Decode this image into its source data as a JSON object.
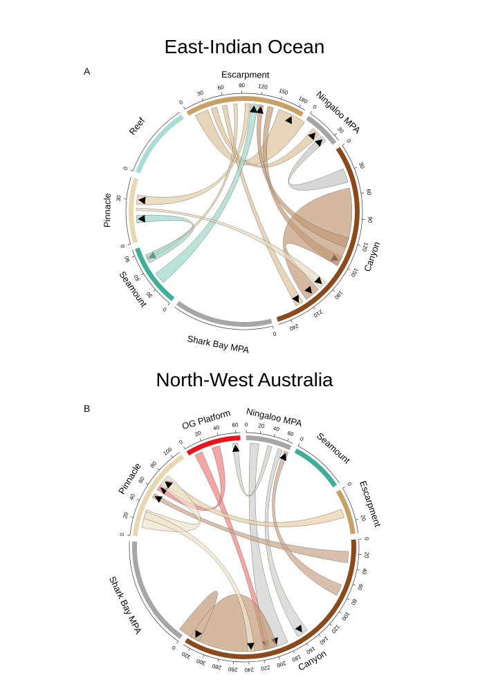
{
  "panels": [
    {
      "title": "East-Indian Ocean",
      "letter": "A",
      "sectors": [
        {
          "name": "Escarpment",
          "color": "#c8a064",
          "max": 190,
          "ticks": [
            0,
            30,
            60,
            90,
            120,
            150,
            180
          ]
        },
        {
          "name": "Ningaloo MPA",
          "color": "#a6a6a6",
          "max": 36,
          "ticks": [
            0,
            30
          ]
        },
        {
          "name": "Canyon",
          "color": "#8b4a1c",
          "max": 255,
          "ticks": [
            0,
            30,
            60,
            90,
            120,
            150,
            180,
            210,
            240
          ]
        },
        {
          "name": "Shark Bay MPA",
          "color": "#a6a6a6",
          "max": 5,
          "ticks": [
            0
          ]
        },
        {
          "name": "Seamount",
          "color": "#3fae98",
          "max": 100,
          "ticks": [
            0,
            30,
            60,
            90
          ]
        },
        {
          "name": "Pinnacle",
          "color": "#e8d8b0",
          "max": 45,
          "ticks": [
            0,
            30
          ]
        },
        {
          "name": "Reef",
          "color": "#a8dcd4",
          "max": 7,
          "ticks": [
            0
          ]
        }
      ]
    },
    {
      "title": "North-West Australia",
      "letter": "B",
      "sectors": [
        {
          "name": "OG Platform",
          "color": "#e8141c",
          "max": 65,
          "ticks": [
            0,
            20,
            40,
            60
          ]
        },
        {
          "name": "Ningaloo MPA",
          "color": "#a6a6a6",
          "max": 68,
          "ticks": [
            0,
            20,
            40,
            60
          ]
        },
        {
          "name": "Seamount",
          "color": "#3fae98",
          "max": 3,
          "ticks": [
            0
          ]
        },
        {
          "name": "Escarpment",
          "color": "#c8a064",
          "max": 28,
          "ticks": [
            0,
            20
          ]
        },
        {
          "name": "Canyon",
          "color": "#8b4a1c",
          "max": 330,
          "ticks": [
            0,
            20,
            40,
            60,
            80,
            100,
            120,
            140,
            160,
            180,
            200,
            220,
            240,
            260,
            280,
            300,
            320
          ]
        },
        {
          "name": "Shark Bay MPA",
          "color": "#a6a6a6",
          "max": 6,
          "ticks": [
            0
          ]
        },
        {
          "name": "Pinnacle",
          "color": "#e8d8b0",
          "max": 110,
          "ticks": [
            0,
            20,
            40,
            60,
            80,
            100
          ]
        }
      ]
    }
  ]
}
